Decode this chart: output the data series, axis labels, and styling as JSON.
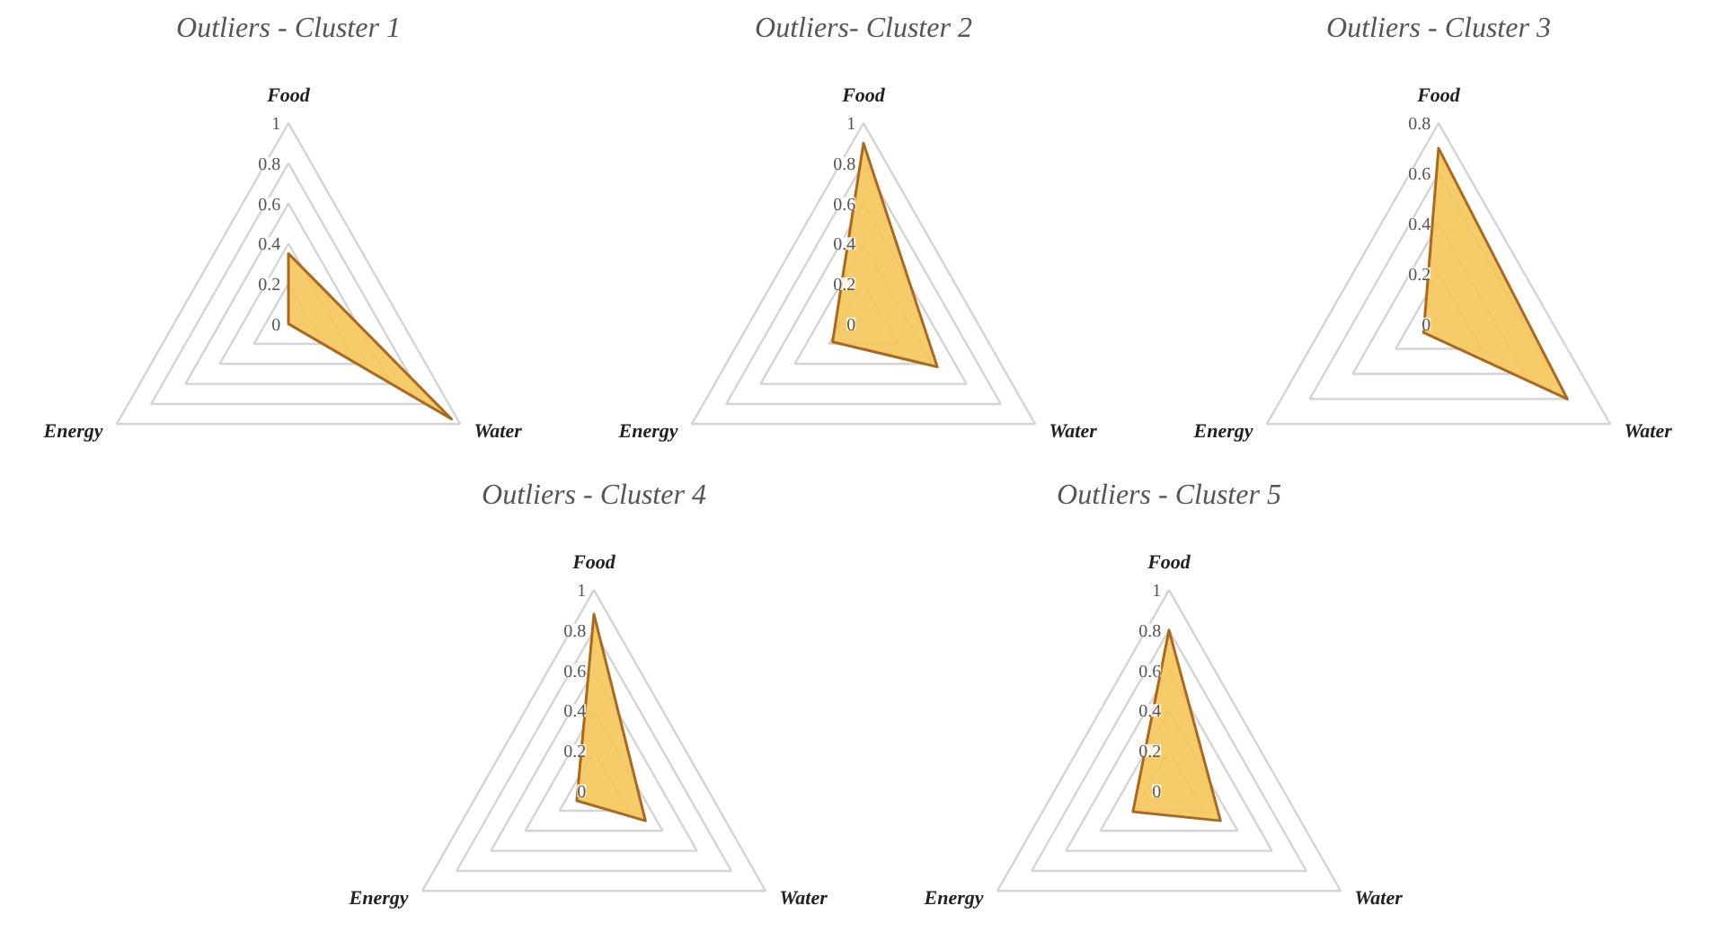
{
  "chart_data": [
    {
      "type": "radar",
      "title": "Outliers - Cluster 1",
      "categories": [
        "Food",
        "Water",
        "Energy"
      ],
      "ylim": [
        0,
        1
      ],
      "yticks": [
        0,
        0.2,
        0.4,
        0.6,
        0.8,
        1
      ],
      "grid": true,
      "series": [
        {
          "color": "#f5c75a",
          "values": [
            0.35,
            0.95,
            0
          ]
        }
      ]
    },
    {
      "type": "radar",
      "title": "Outliers- Cluster 2",
      "categories": [
        "Food",
        "Water",
        "Energy"
      ],
      "ylim": [
        0,
        1
      ],
      "yticks": [
        0,
        0.2,
        0.4,
        0.6,
        0.8,
        1
      ],
      "grid": true,
      "series": [
        {
          "color": "#f5c75a",
          "values": [
            0.9,
            0.43,
            0.18
          ]
        }
      ]
    },
    {
      "type": "radar",
      "title": "Outliers - Cluster 3",
      "categories": [
        "Food",
        "Water",
        "Energy"
      ],
      "ylim": [
        0,
        0.8
      ],
      "yticks": [
        0,
        0.2,
        0.4,
        0.6,
        0.8
      ],
      "grid": true,
      "series": [
        {
          "color": "#f5c75a",
          "values": [
            0.7,
            0.6,
            0.07
          ]
        }
      ]
    },
    {
      "type": "radar",
      "title": "Outliers - Cluster 4",
      "categories": [
        "Food",
        "Water",
        "Energy"
      ],
      "ylim": [
        0,
        1
      ],
      "yticks": [
        0,
        0.2,
        0.4,
        0.6,
        0.8,
        1
      ],
      "grid": true,
      "series": [
        {
          "color": "#f5c75a",
          "values": [
            0.88,
            0.3,
            0.1
          ]
        }
      ]
    },
    {
      "type": "radar",
      "title": "Outliers - Cluster 5",
      "categories": [
        "Food",
        "Water",
        "Energy"
      ],
      "ylim": [
        0,
        1
      ],
      "yticks": [
        0,
        0.2,
        0.4,
        0.6,
        0.8,
        1
      ],
      "grid": true,
      "series": [
        {
          "color": "#f5c75a",
          "values": [
            0.8,
            0.3,
            0.21
          ]
        }
      ]
    }
  ]
}
